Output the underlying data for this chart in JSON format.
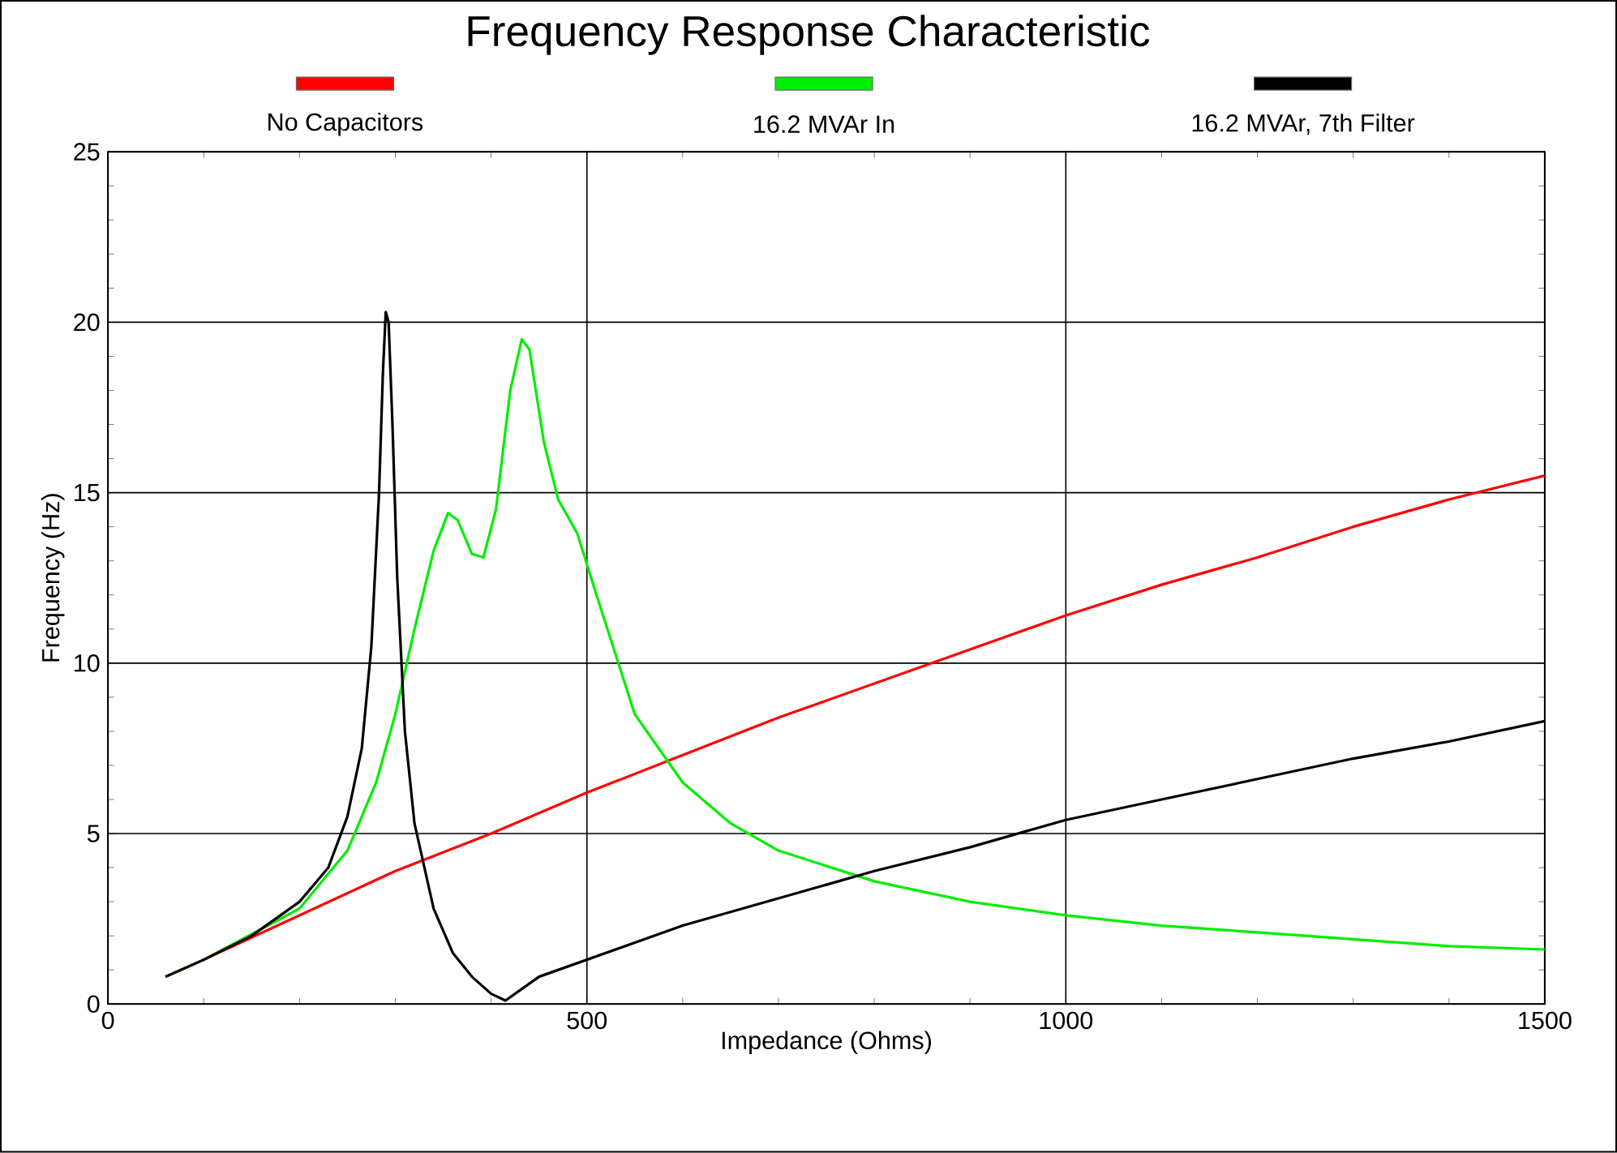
{
  "chart_data": {
    "type": "line",
    "title": "Frequency Response Characteristic",
    "xlabel": "Impedance (Ohms)",
    "ylabel": "Frequency (Hz)",
    "xlim": [
      0,
      1500
    ],
    "ylim": [
      0,
      25
    ],
    "xticks": [
      0,
      500,
      1000,
      1500
    ],
    "yticks": [
      0,
      5,
      10,
      15,
      20,
      25
    ],
    "grid": true,
    "legend": "top",
    "marker": "none",
    "line_style": "solid",
    "series": [
      {
        "name": "No Capacitors",
        "color": "#ff0000",
        "x": [
          60,
          100,
          200,
          300,
          400,
          500,
          600,
          700,
          800,
          900,
          1000,
          1100,
          1200,
          1300,
          1400,
          1500
        ],
        "values": [
          0.8,
          1.3,
          2.6,
          3.9,
          5.0,
          6.2,
          7.3,
          8.4,
          9.4,
          10.4,
          11.4,
          12.3,
          13.1,
          14.0,
          14.8,
          15.5
        ]
      },
      {
        "name": "16.2 MVAr In",
        "color": "#00ee00",
        "x": [
          60,
          100,
          200,
          250,
          280,
          300,
          320,
          340,
          355,
          365,
          380,
          392,
          405,
          420,
          432,
          440,
          455,
          470,
          490,
          510,
          550,
          600,
          650,
          700,
          800,
          900,
          1000,
          1100,
          1200,
          1300,
          1400,
          1500
        ],
        "values": [
          0.8,
          1.3,
          2.8,
          4.5,
          6.5,
          8.5,
          11,
          13.3,
          14.4,
          14.2,
          13.2,
          13.1,
          14.5,
          18,
          19.5,
          19.2,
          16.5,
          14.8,
          13.8,
          12,
          8.5,
          6.5,
          5.3,
          4.5,
          3.6,
          3.0,
          2.6,
          2.3,
          2.1,
          1.9,
          1.7,
          1.6
        ]
      },
      {
        "name": "16.2 MVAr, 7th Filter",
        "color": "#000000",
        "x": [
          60,
          100,
          150,
          200,
          230,
          250,
          265,
          275,
          283,
          287,
          290,
          293,
          297,
          302,
          310,
          320,
          340,
          360,
          380,
          400,
          415,
          430,
          450,
          500,
          600,
          700,
          800,
          900,
          1000,
          1100,
          1200,
          1300,
          1400,
          1500
        ],
        "values": [
          0.8,
          1.3,
          2.0,
          3.0,
          4.0,
          5.5,
          7.5,
          10.5,
          15,
          18.5,
          20.3,
          20.0,
          17,
          12.5,
          8,
          5.3,
          2.8,
          1.5,
          0.8,
          0.3,
          0.1,
          0.4,
          0.8,
          1.3,
          2.3,
          3.1,
          3.9,
          4.6,
          5.4,
          6.0,
          6.6,
          7.2,
          7.7,
          8.3
        ]
      }
    ]
  }
}
